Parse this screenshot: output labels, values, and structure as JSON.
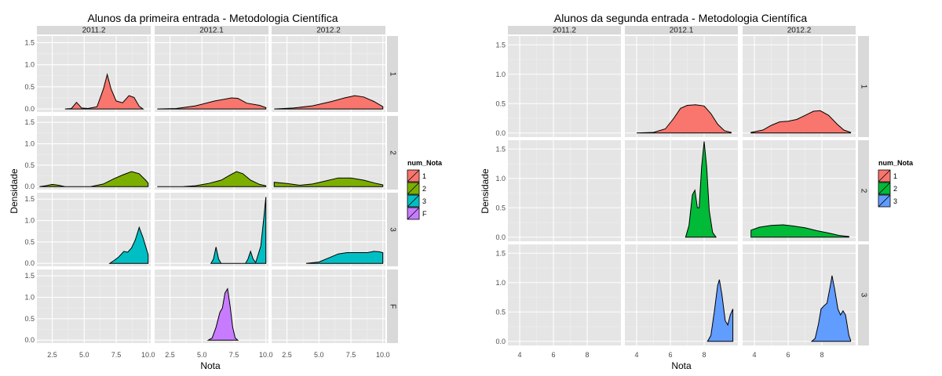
{
  "chart_data": [
    {
      "type": "area",
      "title": "Alunos da primeira entrada -  Metodologia Científica",
      "xlabel": "Nota",
      "ylabel": "Densidade",
      "col_facets": [
        "2011.2",
        "2012.1",
        "2012.2"
      ],
      "row_facets": [
        "1",
        "2",
        "3",
        "F"
      ],
      "xlim": [
        1.3,
        10.2
      ],
      "xticks": [
        2.5,
        5.0,
        7.5,
        10.0
      ],
      "xtick_labels": [
        "2.5",
        "5.0",
        "7.5",
        "10.0"
      ],
      "ylim": [
        -0.07,
        1.65
      ],
      "yticks": [
        0.0,
        0.5,
        1.0,
        1.5
      ],
      "ytick_labels": [
        "0.0",
        "0.5",
        "1.0",
        "1.5"
      ],
      "legend": {
        "title": "num_Nota",
        "position": "right",
        "items": [
          {
            "label": "1",
            "color": "#F8766D"
          },
          {
            "label": "2",
            "color": "#7CAE00"
          },
          {
            "label": "3",
            "color": "#00BFC4"
          },
          {
            "label": "F",
            "color": "#C77CFF"
          }
        ]
      },
      "series": [
        {
          "row": "1",
          "col": "2011.2",
          "color": "#F8766D",
          "points": [
            [
              3.5,
              0
            ],
            [
              4.0,
              0.01
            ],
            [
              4.4,
              0.15
            ],
            [
              4.8,
              0.02
            ],
            [
              5.3,
              0.01
            ],
            [
              6.0,
              0.05
            ],
            [
              6.5,
              0.45
            ],
            [
              6.8,
              0.78
            ],
            [
              7.1,
              0.45
            ],
            [
              7.5,
              0.18
            ],
            [
              8.0,
              0.14
            ],
            [
              8.5,
              0.3
            ],
            [
              8.9,
              0.26
            ],
            [
              9.3,
              0.06
            ],
            [
              9.6,
              0
            ]
          ]
        },
        {
          "row": "1",
          "col": "2012.1",
          "color": "#F8766D",
          "points": [
            [
              1.5,
              0
            ],
            [
              3.0,
              0.01
            ],
            [
              4.5,
              0.07
            ],
            [
              6.0,
              0.18
            ],
            [
              7.3,
              0.25
            ],
            [
              7.8,
              0.24
            ],
            [
              8.5,
              0.13
            ],
            [
              9.5,
              0.08
            ],
            [
              10.0,
              0.03
            ]
          ]
        },
        {
          "row": "1",
          "col": "2012.2",
          "color": "#F8766D",
          "points": [
            [
              1.5,
              0
            ],
            [
              3.0,
              0.02
            ],
            [
              4.5,
              0.07
            ],
            [
              6.0,
              0.17
            ],
            [
              7.0,
              0.25
            ],
            [
              7.8,
              0.3
            ],
            [
              8.5,
              0.27
            ],
            [
              9.3,
              0.17
            ],
            [
              10.0,
              0.05
            ]
          ]
        },
        {
          "row": "2",
          "col": "2011.2",
          "color": "#7CAE00",
          "points": [
            [
              1.5,
              0
            ],
            [
              2.0,
              0.02
            ],
            [
              2.5,
              0.05
            ],
            [
              3.0,
              0.03
            ],
            [
              3.5,
              0
            ],
            [
              5.5,
              0
            ],
            [
              6.5,
              0.06
            ],
            [
              7.3,
              0.18
            ],
            [
              8.0,
              0.27
            ],
            [
              8.7,
              0.35
            ],
            [
              9.3,
              0.3
            ],
            [
              9.8,
              0.15
            ],
            [
              10.0,
              0.08
            ]
          ]
        },
        {
          "row": "2",
          "col": "2012.1",
          "color": "#7CAE00",
          "points": [
            [
              1.5,
              0
            ],
            [
              3.5,
              0
            ],
            [
              4.5,
              0.02
            ],
            [
              5.5,
              0.07
            ],
            [
              6.5,
              0.15
            ],
            [
              7.2,
              0.27
            ],
            [
              7.7,
              0.35
            ],
            [
              8.2,
              0.3
            ],
            [
              8.8,
              0.15
            ],
            [
              9.5,
              0.05
            ],
            [
              10.0,
              0.02
            ]
          ]
        },
        {
          "row": "2",
          "col": "2012.2",
          "color": "#7CAE00",
          "points": [
            [
              1.5,
              0.1
            ],
            [
              2.5,
              0.07
            ],
            [
              3.5,
              0.03
            ],
            [
              4.5,
              0.06
            ],
            [
              5.5,
              0.13
            ],
            [
              6.5,
              0.2
            ],
            [
              7.5,
              0.2
            ],
            [
              8.5,
              0.15
            ],
            [
              9.5,
              0.07
            ],
            [
              10.0,
              0.04
            ]
          ]
        },
        {
          "row": "3",
          "col": "2011.2",
          "color": "#00BFC4",
          "points": [
            [
              7.0,
              0
            ],
            [
              7.3,
              0.06
            ],
            [
              7.7,
              0.15
            ],
            [
              8.1,
              0.28
            ],
            [
              8.4,
              0.26
            ],
            [
              8.7,
              0.36
            ],
            [
              9.0,
              0.55
            ],
            [
              9.3,
              0.84
            ],
            [
              9.6,
              0.6
            ],
            [
              9.9,
              0.3
            ],
            [
              10.0,
              0.2
            ]
          ]
        },
        {
          "row": "3",
          "col": "2012.1",
          "color": "#00BFC4",
          "points": [
            [
              5.7,
              0
            ],
            [
              5.9,
              0.1
            ],
            [
              6.1,
              0.38
            ],
            [
              6.3,
              0.1
            ],
            [
              6.5,
              0
            ],
            [
              8.4,
              0
            ],
            [
              8.6,
              0.1
            ],
            [
              8.8,
              0.28
            ],
            [
              9.0,
              0.1
            ],
            [
              9.2,
              0.02
            ],
            [
              9.6,
              0.4
            ],
            [
              9.85,
              1.1
            ],
            [
              10.0,
              1.55
            ]
          ]
        },
        {
          "row": "3",
          "col": "2012.2",
          "color": "#00BFC4",
          "points": [
            [
              4.0,
              0
            ],
            [
              5.0,
              0.03
            ],
            [
              5.8,
              0.13
            ],
            [
              6.5,
              0.22
            ],
            [
              7.2,
              0.25
            ],
            [
              8.0,
              0.25
            ],
            [
              8.8,
              0.25
            ],
            [
              9.3,
              0.28
            ],
            [
              9.7,
              0.27
            ],
            [
              10.0,
              0.25
            ]
          ]
        },
        {
          "row": "F",
          "col": "2012.1",
          "color": "#C77CFF",
          "points": [
            [
              5.5,
              0
            ],
            [
              5.8,
              0.05
            ],
            [
              6.1,
              0.3
            ],
            [
              6.4,
              0.65
            ],
            [
              6.6,
              0.75
            ],
            [
              6.8,
              1.1
            ],
            [
              7.0,
              1.2
            ],
            [
              7.2,
              0.8
            ],
            [
              7.4,
              0.3
            ],
            [
              7.6,
              0.05
            ],
            [
              7.8,
              0
            ]
          ]
        }
      ]
    },
    {
      "type": "area",
      "title": "Alunos da segunda entrada -  Metodologia Científica",
      "xlabel": "Nota",
      "ylabel": "Densidade",
      "col_facets": [
        "2011.2",
        "2012.1",
        "2012.2"
      ],
      "row_facets": [
        "1",
        "2",
        "3"
      ],
      "xlim": [
        3.3,
        10.0
      ],
      "xticks": [
        4,
        6,
        8
      ],
      "xtick_labels": [
        "4",
        "6",
        "8"
      ],
      "ylim": [
        -0.07,
        1.65
      ],
      "yticks": [
        0.0,
        0.5,
        1.0,
        1.5
      ],
      "ytick_labels": [
        "0.0",
        "0.5",
        "1.0",
        "1.5"
      ],
      "legend": {
        "title": "num_Nota",
        "position": "right",
        "items": [
          {
            "label": "1",
            "color": "#F8766D"
          },
          {
            "label": "2",
            "color": "#00BA38"
          },
          {
            "label": "3",
            "color": "#619CFF"
          }
        ]
      },
      "series": [
        {
          "row": "1",
          "col": "2012.1",
          "color": "#F8766D",
          "points": [
            [
              4.0,
              0
            ],
            [
              5.0,
              0.01
            ],
            [
              5.7,
              0.07
            ],
            [
              6.2,
              0.25
            ],
            [
              6.6,
              0.42
            ],
            [
              7.0,
              0.47
            ],
            [
              7.5,
              0.48
            ],
            [
              8.0,
              0.46
            ],
            [
              8.4,
              0.33
            ],
            [
              8.8,
              0.15
            ],
            [
              9.2,
              0.04
            ],
            [
              9.6,
              0.01
            ]
          ]
        },
        {
          "row": "1",
          "col": "2012.2",
          "color": "#F8766D",
          "points": [
            [
              3.8,
              0.01
            ],
            [
              4.5,
              0.05
            ],
            [
              5.0,
              0.13
            ],
            [
              5.5,
              0.19
            ],
            [
              6.0,
              0.2
            ],
            [
              6.5,
              0.23
            ],
            [
              7.0,
              0.3
            ],
            [
              7.5,
              0.37
            ],
            [
              7.9,
              0.38
            ],
            [
              8.4,
              0.3
            ],
            [
              8.9,
              0.15
            ],
            [
              9.3,
              0.05
            ],
            [
              9.7,
              0.01
            ]
          ]
        },
        {
          "row": "2",
          "col": "2012.1",
          "color": "#00BA38",
          "points": [
            [
              6.9,
              0
            ],
            [
              7.1,
              0.2
            ],
            [
              7.3,
              0.72
            ],
            [
              7.45,
              0.8
            ],
            [
              7.6,
              0.5
            ],
            [
              7.7,
              0.5
            ],
            [
              7.85,
              1.2
            ],
            [
              8.0,
              1.63
            ],
            [
              8.15,
              1.2
            ],
            [
              8.3,
              0.45
            ],
            [
              8.5,
              0.08
            ],
            [
              8.7,
              0
            ]
          ]
        },
        {
          "row": "2",
          "col": "2012.2",
          "color": "#00BA38",
          "points": [
            [
              3.8,
              0.12
            ],
            [
              4.3,
              0.17
            ],
            [
              5.0,
              0.2
            ],
            [
              5.7,
              0.21
            ],
            [
              6.3,
              0.19
            ],
            [
              7.0,
              0.16
            ],
            [
              7.7,
              0.11
            ],
            [
              8.4,
              0.07
            ],
            [
              9.0,
              0.03
            ],
            [
              9.6,
              0.01
            ]
          ]
        },
        {
          "row": "3",
          "col": "2012.1",
          "color": "#619CFF",
          "points": [
            [
              8.2,
              0
            ],
            [
              8.4,
              0.1
            ],
            [
              8.6,
              0.5
            ],
            [
              8.8,
              0.95
            ],
            [
              8.9,
              1.05
            ],
            [
              9.05,
              0.8
            ],
            [
              9.25,
              0.35
            ],
            [
              9.4,
              0.28
            ],
            [
              9.55,
              0.45
            ],
            [
              9.7,
              0.55
            ]
          ]
        },
        {
          "row": "3",
          "col": "2012.2",
          "color": "#619CFF",
          "points": [
            [
              7.4,
              0
            ],
            [
              7.6,
              0.05
            ],
            [
              7.8,
              0.3
            ],
            [
              7.95,
              0.55
            ],
            [
              8.1,
              0.6
            ],
            [
              8.3,
              0.65
            ],
            [
              8.5,
              0.95
            ],
            [
              8.6,
              1.12
            ],
            [
              8.75,
              0.9
            ],
            [
              8.95,
              0.55
            ],
            [
              9.1,
              0.45
            ],
            [
              9.25,
              0.52
            ],
            [
              9.4,
              0.45
            ],
            [
              9.6,
              0.1
            ],
            [
              9.7,
              0.02
            ]
          ]
        }
      ]
    }
  ]
}
